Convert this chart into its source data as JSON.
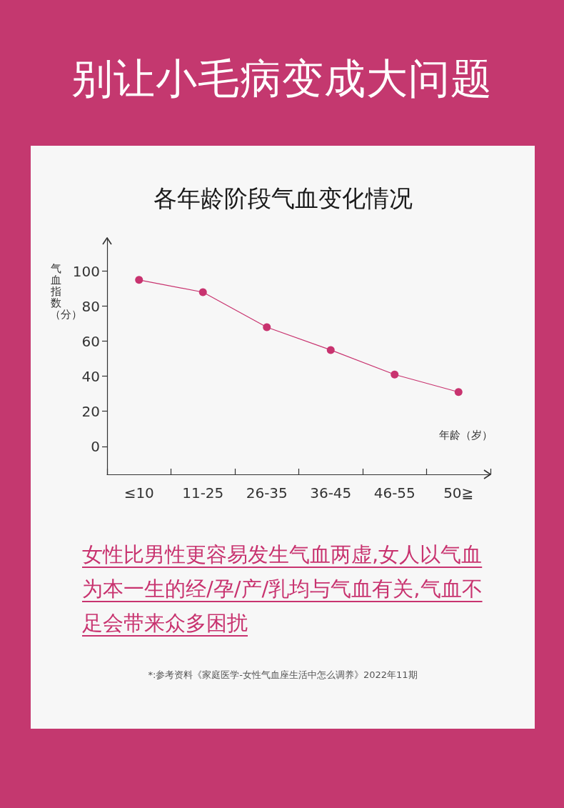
{
  "chart_data": {
    "type": "line",
    "title": "别让小毛病变成大问题",
    "subtitle": "各年龄阶段气血变化情况",
    "xlabel": "年龄（岁）",
    "ylabel": "气血指数（分）",
    "annotations": [
      "女性比男性更容易发生气血两虚,女人以气血为本一生的经/孕/产/乳均与气血有关,气血不足会带来众多困扰",
      "*:参考资料《家庭医学-女性气血座生活中怎么调养》2022年11期"
    ],
    "categories": [
      "≤10",
      "11-25",
      "26-35",
      "36-45",
      "46-55",
      "50≧"
    ],
    "series": [
      {
        "color": "#c8336f",
        "values": [
          95,
          88,
          68,
          55,
          41,
          31
        ]
      }
    ],
    "ylim": [
      -16,
      119
    ],
    "yticks": [
      0,
      20,
      40,
      60,
      80,
      100
    ],
    "marker": "circle",
    "line_style": "solid"
  }
}
